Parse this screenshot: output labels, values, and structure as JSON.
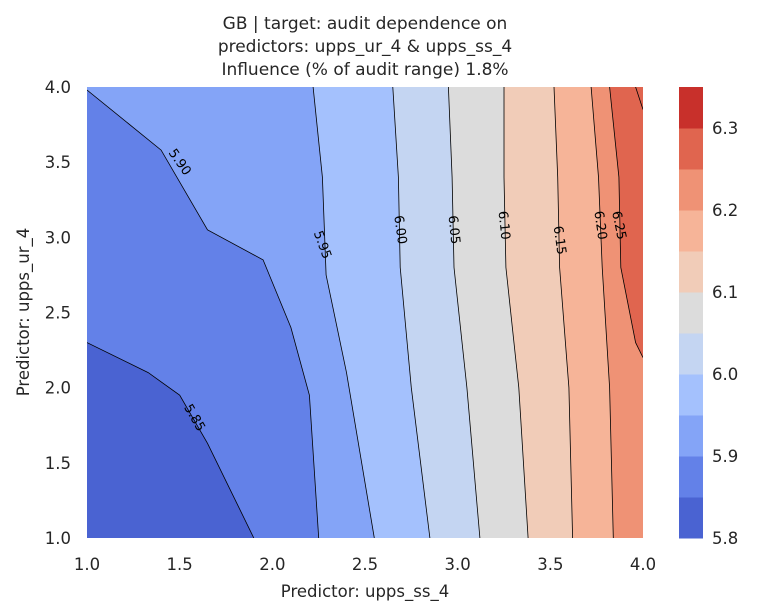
{
  "chart_data": {
    "type": "contour",
    "title_lines": [
      "GB | target: audit dependence on",
      "predictors: upps_ur_4 & upps_ss_4",
      "Influence (% of audit range) 1.8%"
    ],
    "xlabel": "Predictor: upps_ss_4",
    "ylabel": "Predictor: upps_ur_4",
    "xlim": [
      1.0,
      4.0
    ],
    "ylim": [
      1.0,
      4.0
    ],
    "x_ticks": [
      "1.0",
      "1.5",
      "2.0",
      "2.5",
      "3.0",
      "3.5",
      "4.0"
    ],
    "y_ticks": [
      "1.0",
      "1.5",
      "2.0",
      "2.5",
      "3.0",
      "3.5",
      "4.0"
    ],
    "levels": [
      5.8,
      5.825,
      5.85,
      5.875,
      5.9,
      5.925,
      5.95,
      5.975,
      6.0,
      6.025,
      6.05,
      6.075,
      6.1,
      6.125,
      6.15,
      6.175,
      6.2,
      6.225,
      6.25,
      6.275,
      6.3,
      6.325,
      6.35
    ],
    "band_colors": [
      "#4a63d2",
      "#6381e8",
      "#84a4f7",
      "#a4c1fd",
      "#c4d5f2",
      "#dcdcdc",
      "#f1ccb8",
      "#f6b498",
      "#ef9275",
      "#e0654f",
      "#c8302b"
    ],
    "band_edges": [
      5.8,
      5.85,
      5.9,
      5.95,
      6.0,
      6.05,
      6.1,
      6.15,
      6.2,
      6.25,
      6.3,
      6.35
    ],
    "contour_lines": [
      {
        "level": "5.85",
        "points": [
          [
            1.0,
            2.3
          ],
          [
            1.33,
            2.1
          ],
          [
            1.5,
            1.95
          ],
          [
            1.65,
            1.63
          ],
          [
            1.9,
            1.0
          ]
        ],
        "label_at": [
          1.58,
          1.8
        ],
        "label_rot": 60
      },
      {
        "level": "5.90",
        "points": [
          [
            1.0,
            3.98
          ],
          [
            1.4,
            3.58
          ],
          [
            1.65,
            3.05
          ],
          [
            1.95,
            2.85
          ],
          [
            2.1,
            2.4
          ],
          [
            2.2,
            1.95
          ],
          [
            2.25,
            1.0
          ]
        ],
        "label_at": [
          1.5,
          3.5
        ],
        "label_rot": 55
      },
      {
        "level": "5.95",
        "points": [
          [
            2.22,
            4.0
          ],
          [
            2.27,
            3.4
          ],
          [
            2.29,
            2.75
          ],
          [
            2.4,
            2.1
          ],
          [
            2.55,
            1.0
          ]
        ],
        "label_at": [
          2.27,
          2.95
        ],
        "label_rot": 70
      },
      {
        "level": "6.00",
        "points": [
          [
            2.65,
            4.0
          ],
          [
            2.68,
            3.4
          ],
          [
            2.69,
            2.8
          ],
          [
            2.75,
            2.0
          ],
          [
            2.85,
            1.0
          ]
        ],
        "label_at": [
          2.69,
          3.05
        ],
        "label_rot": 82
      },
      {
        "level": "6.05",
        "points": [
          [
            2.95,
            4.0
          ],
          [
            2.97,
            3.4
          ],
          [
            2.98,
            2.8
          ],
          [
            3.05,
            2.0
          ],
          [
            3.12,
            1.0
          ]
        ],
        "label_at": [
          2.98,
          3.05
        ],
        "label_rot": 84
      },
      {
        "level": "6.10",
        "points": [
          [
            3.25,
            4.0
          ],
          [
            3.25,
            3.4
          ],
          [
            3.26,
            2.8
          ],
          [
            3.33,
            2.0
          ],
          [
            3.38,
            1.0
          ]
        ],
        "label_at": [
          3.25,
          3.08
        ],
        "label_rot": 84
      },
      {
        "level": "6.15",
        "points": [
          [
            3.52,
            4.0
          ],
          [
            3.54,
            3.4
          ],
          [
            3.55,
            2.8
          ],
          [
            3.6,
            2.0
          ],
          [
            3.62,
            1.0
          ]
        ],
        "label_at": [
          3.55,
          2.98
        ],
        "label_rot": 82
      },
      {
        "level": "6.20",
        "points": [
          [
            3.72,
            4.0
          ],
          [
            3.76,
            3.4
          ],
          [
            3.78,
            2.8
          ],
          [
            3.82,
            2.0
          ],
          [
            3.84,
            1.0
          ]
        ],
        "label_at": [
          3.77,
          3.08
        ],
        "label_rot": 82
      },
      {
        "level": "6.25",
        "points": [
          [
            3.82,
            4.0
          ],
          [
            3.87,
            3.4
          ],
          [
            3.88,
            2.8
          ],
          [
            3.96,
            2.3
          ],
          [
            4.0,
            2.2
          ]
        ],
        "label_at": [
          3.87,
          3.08
        ],
        "label_rot": 78
      },
      {
        "level": "6.30",
        "points": [
          [
            3.96,
            4.0
          ],
          [
            4.0,
            3.85
          ]
        ],
        "label_at": null,
        "label_rot": 0
      }
    ],
    "colorbar": {
      "ticks": [
        "5.8",
        "5.9",
        "6.0",
        "6.1",
        "6.2",
        "6.3"
      ],
      "range": [
        5.8,
        6.35
      ]
    }
  }
}
